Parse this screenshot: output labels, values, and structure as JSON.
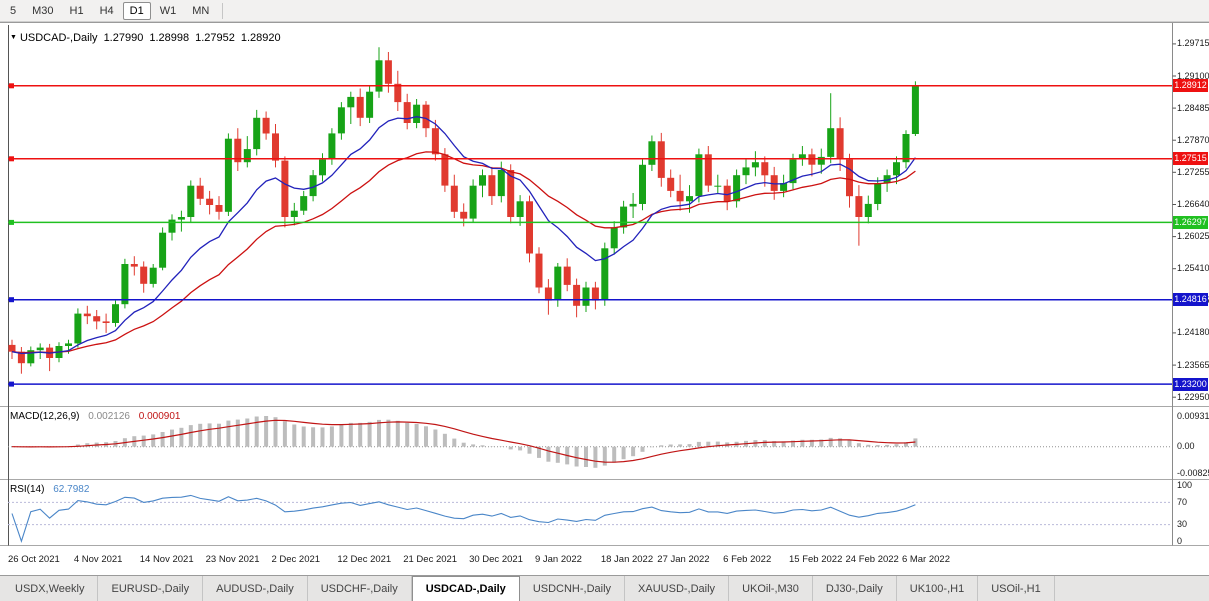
{
  "toolbar": {
    "timeframes": [
      {
        "label": "5",
        "active": false
      },
      {
        "label": "M30",
        "active": false
      },
      {
        "label": "H1",
        "active": false
      },
      {
        "label": "H4",
        "active": false
      },
      {
        "label": "D1",
        "active": true
      },
      {
        "label": "W1",
        "active": false
      },
      {
        "label": "MN",
        "active": false
      }
    ]
  },
  "chart": {
    "marker": "▼",
    "symbol_title": "USDCAD-,Daily",
    "ohlc": {
      "open": "1.27990",
      "high": "1.28998",
      "low": "1.27952",
      "close": "1.28920"
    },
    "colors": {
      "up": "#17a317",
      "down": "#e03a2f",
      "ma_fast": "#2222bb",
      "ma_slow": "#cc1111",
      "macd_hist": "#bdbdbd",
      "macd_signal": "#c01515",
      "rsi_line": "#4a86c8",
      "level_dashed": "#b9b9d9",
      "sr_red": "#ee1111",
      "sr_green": "#21c021",
      "sr_blue": "#1414cc"
    },
    "price_axis": {
      "min": 1.228,
      "max": 1.3,
      "ticks": [
        {
          "label": "1.29715",
          "p": 1.29715
        },
        {
          "label": "1.29100",
          "p": 1.291
        },
        {
          "label": "1.28485",
          "p": 1.28485
        },
        {
          "label": "1.27870",
          "p": 1.2787
        },
        {
          "label": "1.27255",
          "p": 1.27255
        },
        {
          "label": "1.26640",
          "p": 1.2664
        },
        {
          "label": "1.26025",
          "p": 1.26025
        },
        {
          "label": "1.25410",
          "p": 1.2541
        },
        {
          "label": "1.24795",
          "p": 1.24795
        },
        {
          "label": "1.24180",
          "p": 1.2418
        },
        {
          "label": "1.23565",
          "p": 1.23565
        },
        {
          "label": "1.22950",
          "p": 1.2295
        }
      ]
    },
    "sr_lines": [
      {
        "label": "1.28912",
        "price": 1.28912,
        "color": "#ee1111"
      },
      {
        "label": "1.27515",
        "price": 1.27515,
        "color": "#ee1111"
      },
      {
        "label": "1.26297",
        "price": 1.26297,
        "color": "#21c021"
      },
      {
        "label": "1.24816",
        "price": 1.24816,
        "color": "#1414cc"
      },
      {
        "label": "1.23200",
        "price": 1.232,
        "color": "#1414cc"
      }
    ],
    "candles": [
      [
        1.2395,
        1.2405,
        1.2368,
        1.2382
      ],
      [
        1.2382,
        1.2391,
        1.234,
        1.236
      ],
      [
        1.236,
        1.2392,
        1.2354,
        1.2385
      ],
      [
        1.2385,
        1.2398,
        1.2368,
        1.239
      ],
      [
        1.239,
        1.2397,
        1.2345,
        1.237
      ],
      [
        1.237,
        1.24,
        1.2362,
        1.2393
      ],
      [
        1.2393,
        1.2405,
        1.2378,
        1.2398
      ],
      [
        1.2398,
        1.2465,
        1.239,
        1.2455
      ],
      [
        1.2455,
        1.247,
        1.2435,
        1.245
      ],
      [
        1.245,
        1.2462,
        1.2425,
        1.244
      ],
      [
        1.244,
        1.2455,
        1.2418,
        1.2437
      ],
      [
        1.2437,
        1.248,
        1.243,
        1.2473
      ],
      [
        1.2473,
        1.256,
        1.2465,
        1.255
      ],
      [
        1.255,
        1.2565,
        1.2528,
        1.2545
      ],
      [
        1.2545,
        1.2555,
        1.2495,
        1.2512
      ],
      [
        1.2512,
        1.255,
        1.2505,
        1.2543
      ],
      [
        1.2543,
        1.262,
        1.2538,
        1.261
      ],
      [
        1.261,
        1.2645,
        1.2595,
        1.2635
      ],
      [
        1.2635,
        1.2652,
        1.2612,
        1.264
      ],
      [
        1.264,
        1.271,
        1.263,
        1.27
      ],
      [
        1.27,
        1.2715,
        1.2663,
        1.2675
      ],
      [
        1.2675,
        1.269,
        1.2645,
        1.2663
      ],
      [
        1.2663,
        1.268,
        1.2635,
        1.265
      ],
      [
        1.265,
        1.28,
        1.2642,
        1.279
      ],
      [
        1.279,
        1.281,
        1.2728,
        1.2745
      ],
      [
        1.2745,
        1.2795,
        1.2735,
        1.277
      ],
      [
        1.277,
        1.2845,
        1.2758,
        1.283
      ],
      [
        1.283,
        1.2842,
        1.2788,
        1.28
      ],
      [
        1.28,
        1.2818,
        1.2735,
        1.2748
      ],
      [
        1.2748,
        1.2756,
        1.262,
        1.264
      ],
      [
        1.264,
        1.2667,
        1.2624,
        1.2652
      ],
      [
        1.2652,
        1.269,
        1.2644,
        1.268
      ],
      [
        1.268,
        1.273,
        1.267,
        1.272
      ],
      [
        1.272,
        1.2762,
        1.2708,
        1.275
      ],
      [
        1.275,
        1.281,
        1.274,
        1.28
      ],
      [
        1.28,
        1.286,
        1.2788,
        1.285
      ],
      [
        1.285,
        1.288,
        1.2818,
        1.287
      ],
      [
        1.287,
        1.2886,
        1.2814,
        1.283
      ],
      [
        1.283,
        1.289,
        1.282,
        1.288
      ],
      [
        1.288,
        1.2965,
        1.2868,
        1.294
      ],
      [
        1.294,
        1.2956,
        1.2878,
        1.2895
      ],
      [
        1.2895,
        1.292,
        1.2843,
        1.286
      ],
      [
        1.286,
        1.2876,
        1.2808,
        1.282
      ],
      [
        1.282,
        1.2866,
        1.281,
        1.2855
      ],
      [
        1.2855,
        1.2862,
        1.2793,
        1.281
      ],
      [
        1.281,
        1.2826,
        1.2748,
        1.276
      ],
      [
        1.276,
        1.2772,
        1.2688,
        1.27
      ],
      [
        1.27,
        1.2721,
        1.2638,
        1.265
      ],
      [
        1.265,
        1.2666,
        1.2622,
        1.2637
      ],
      [
        1.2637,
        1.2712,
        1.263,
        1.27
      ],
      [
        1.27,
        1.2731,
        1.2678,
        1.272
      ],
      [
        1.272,
        1.2736,
        1.2663,
        1.268
      ],
      [
        1.268,
        1.2746,
        1.2668,
        1.273
      ],
      [
        1.273,
        1.2741,
        1.2628,
        1.264
      ],
      [
        1.264,
        1.2682,
        1.2623,
        1.267
      ],
      [
        1.267,
        1.2681,
        1.2553,
        1.257
      ],
      [
        1.257,
        1.2582,
        1.2494,
        1.2505
      ],
      [
        1.2505,
        1.2521,
        1.2453,
        1.248
      ],
      [
        1.248,
        1.2552,
        1.2468,
        1.2545
      ],
      [
        1.2545,
        1.2561,
        1.2498,
        1.251
      ],
      [
        1.251,
        1.2522,
        1.2448,
        1.247
      ],
      [
        1.247,
        1.2516,
        1.2458,
        1.2505
      ],
      [
        1.2505,
        1.2516,
        1.2463,
        1.248
      ],
      [
        1.248,
        1.2591,
        1.247,
        1.258
      ],
      [
        1.258,
        1.2632,
        1.2568,
        1.262
      ],
      [
        1.262,
        1.2671,
        1.2608,
        1.266
      ],
      [
        1.266,
        1.2686,
        1.2638,
        1.2665
      ],
      [
        1.2665,
        1.2751,
        1.2653,
        1.274
      ],
      [
        1.274,
        1.2796,
        1.2728,
        1.2785
      ],
      [
        1.2785,
        1.2801,
        1.2698,
        1.2715
      ],
      [
        1.2715,
        1.2731,
        1.2678,
        1.269
      ],
      [
        1.269,
        1.2721,
        1.2652,
        1.267
      ],
      [
        1.267,
        1.2701,
        1.2648,
        1.268
      ],
      [
        1.268,
        1.2771,
        1.2668,
        1.276
      ],
      [
        1.276,
        1.2776,
        1.2688,
        1.27
      ],
      [
        1.27,
        1.2721,
        1.2684,
        1.27
      ],
      [
        1.27,
        1.2712,
        1.2653,
        1.267
      ],
      [
        1.267,
        1.2731,
        1.2658,
        1.272
      ],
      [
        1.272,
        1.2751,
        1.2703,
        1.2735
      ],
      [
        1.2735,
        1.2766,
        1.2718,
        1.2745
      ],
      [
        1.2745,
        1.2756,
        1.2698,
        1.272
      ],
      [
        1.272,
        1.2736,
        1.2673,
        1.269
      ],
      [
        1.269,
        1.2721,
        1.2678,
        1.2705
      ],
      [
        1.2705,
        1.2761,
        1.2693,
        1.275
      ],
      [
        1.275,
        1.2776,
        1.2738,
        1.276
      ],
      [
        1.276,
        1.2771,
        1.2718,
        1.274
      ],
      [
        1.274,
        1.2771,
        1.2723,
        1.2755
      ],
      [
        1.2755,
        1.2877,
        1.2743,
        1.281
      ],
      [
        1.281,
        1.2831,
        1.2728,
        1.275
      ],
      [
        1.275,
        1.2761,
        1.2658,
        1.268
      ],
      [
        1.268,
        1.2701,
        1.2585,
        1.264
      ],
      [
        1.264,
        1.2681,
        1.2628,
        1.2665
      ],
      [
        1.2665,
        1.2716,
        1.2653,
        1.2705
      ],
      [
        1.2705,
        1.2731,
        1.2688,
        1.272
      ],
      [
        1.272,
        1.2756,
        1.2703,
        1.2745
      ],
      [
        1.2745,
        1.2806,
        1.2733,
        1.2799
      ],
      [
        1.2799,
        1.28998,
        1.27952,
        1.2892
      ]
    ]
  },
  "macd": {
    "label": "MACD(12,26,9)",
    "value_main": "0.002126",
    "value_signal": "0.000901",
    "fast": 12,
    "slow": 26,
    "signal": 9,
    "axis_ticks": [
      {
        "label": "0.009314",
        "v": 0.009314
      },
      {
        "label": "0.00",
        "v": 0
      },
      {
        "label": "-0.008256",
        "v": -0.008256
      }
    ]
  },
  "rsi": {
    "label": "RSI(14)",
    "value": "62.7982",
    "period": 14,
    "levels": [
      70,
      30
    ],
    "axis_ticks": [
      {
        "label": "100",
        "v": 100
      },
      {
        "label": "70",
        "v": 70
      },
      {
        "label": "30",
        "v": 30
      },
      {
        "label": "0",
        "v": 0
      }
    ]
  },
  "date_axis": {
    "labels": [
      {
        "text": "26 Oct 2021",
        "i": 0
      },
      {
        "text": "4 Nov 2021",
        "i": 7
      },
      {
        "text": "14 Nov 2021",
        "i": 14
      },
      {
        "text": "23 Nov 2021",
        "i": 21
      },
      {
        "text": "2 Dec 2021",
        "i": 28
      },
      {
        "text": "12 Dec 2021",
        "i": 35
      },
      {
        "text": "21 Dec 2021",
        "i": 42
      },
      {
        "text": "30 Dec 2021",
        "i": 49
      },
      {
        "text": "9 Jan 2022",
        "i": 56
      },
      {
        "text": "18 Jan 2022",
        "i": 63
      },
      {
        "text": "27 Jan 2022",
        "i": 69
      },
      {
        "text": "6 Feb 2022",
        "i": 76
      },
      {
        "text": "15 Feb 2022",
        "i": 83
      },
      {
        "text": "24 Feb 2022",
        "i": 89
      },
      {
        "text": "6 Mar 2022",
        "i": 95
      }
    ]
  },
  "tabs": [
    {
      "label": "USDX,Weekly",
      "active": false
    },
    {
      "label": "EURUSD-,Daily",
      "active": false
    },
    {
      "label": "AUDUSD-,Daily",
      "active": false
    },
    {
      "label": "USDCHF-,Daily",
      "active": false
    },
    {
      "label": "USDCAD-,Daily",
      "active": true
    },
    {
      "label": "USDCNH-,Daily",
      "active": false
    },
    {
      "label": "XAUUSD-,Daily",
      "active": false
    },
    {
      "label": "UKOil-,M30",
      "active": false
    },
    {
      "label": "DJ30-,Daily",
      "active": false
    },
    {
      "label": "UK100-,H1",
      "active": false
    },
    {
      "label": "USOil-,H1",
      "active": false
    }
  ]
}
